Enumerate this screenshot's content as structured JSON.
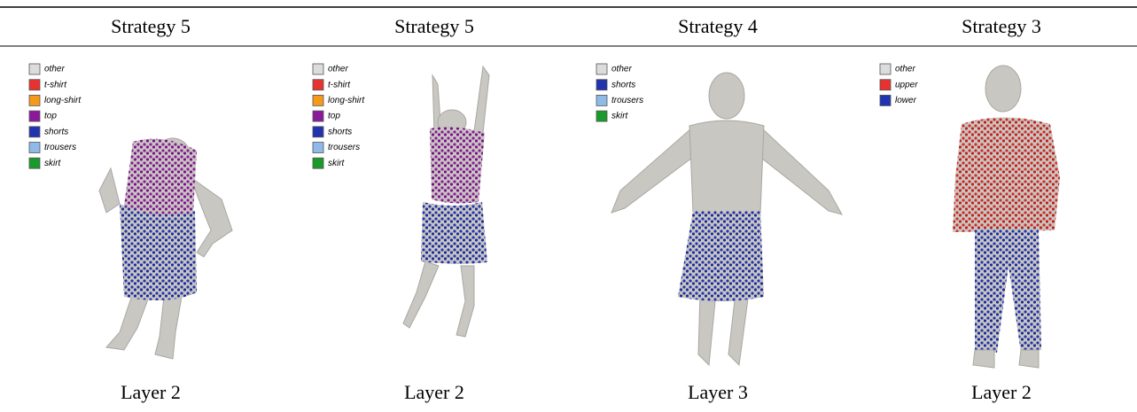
{
  "panels": [
    {
      "title": "Strategy 5",
      "caption": "Layer 2",
      "legend": [
        {
          "label": "other",
          "color": "#dcdcdc"
        },
        {
          "label": "t-shirt",
          "color": "#e8322f"
        },
        {
          "label": "long-shirt",
          "color": "#f39a1e"
        },
        {
          "label": "top",
          "color": "#8b1a9a"
        },
        {
          "label": "shorts",
          "color": "#2233b0"
        },
        {
          "label": "trousers",
          "color": "#8fb9e6"
        },
        {
          "label": "skirt",
          "color": "#1a9a2a"
        }
      ]
    },
    {
      "title": "Strategy 5",
      "caption": "Layer 2",
      "legend": [
        {
          "label": "other",
          "color": "#dcdcdc"
        },
        {
          "label": "t-shirt",
          "color": "#e8322f"
        },
        {
          "label": "long-shirt",
          "color": "#f39a1e"
        },
        {
          "label": "top",
          "color": "#8b1a9a"
        },
        {
          "label": "shorts",
          "color": "#2233b0"
        },
        {
          "label": "trousers",
          "color": "#8fb9e6"
        },
        {
          "label": "skirt",
          "color": "#1a9a2a"
        }
      ]
    },
    {
      "title": "Strategy 4",
      "caption": "Layer 3",
      "legend": [
        {
          "label": "other",
          "color": "#dcdcdc"
        },
        {
          "label": "shorts",
          "color": "#2233b0"
        },
        {
          "label": "trousers",
          "color": "#8fb9e6"
        },
        {
          "label": "skirt",
          "color": "#1a9a2a"
        }
      ]
    },
    {
      "title": "Strategy 3",
      "caption": "Layer 2",
      "legend": [
        {
          "label": "other",
          "color": "#dcdcdc"
        },
        {
          "label": "upper",
          "color": "#e8322f"
        },
        {
          "label": "lower",
          "color": "#2233b0"
        }
      ]
    }
  ]
}
